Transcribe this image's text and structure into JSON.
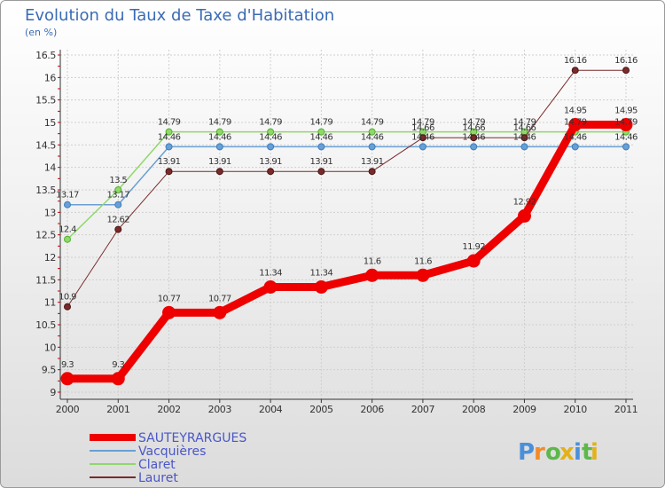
{
  "chart_data": {
    "type": "line",
    "title": "Evolution du Taux de Taxe d'Habitation",
    "ylabel": "(en %)",
    "xlabel": "",
    "x": [
      "2000",
      "2001",
      "2002",
      "2003",
      "2004",
      "2005",
      "2006",
      "2007",
      "2008",
      "2009",
      "2010",
      "2011"
    ],
    "ylim": [
      9,
      16.5
    ],
    "yticks": [
      "9",
      "9.5",
      "10",
      "10.5",
      "11",
      "11.5",
      "12",
      "12.5",
      "13",
      "13.5",
      "14",
      "14.5",
      "15",
      "15.5",
      "16",
      "16.5"
    ],
    "series": [
      {
        "name": "SAUTEYRARGUES",
        "color": "#ee0000",
        "width": 9,
        "values": [
          9.3,
          9.3,
          10.77,
          10.77,
          11.34,
          11.34,
          11.6,
          11.6,
          11.92,
          12.92,
          14.95,
          14.95
        ],
        "labels": [
          "9.3",
          "9.3",
          "10.77",
          "10.77",
          "11.34",
          "11.34",
          "11.6",
          "11.6",
          "11.92",
          "12.92",
          "14.95",
          "14.95"
        ]
      },
      {
        "name": "Vacquières",
        "color": "#6a9fd4",
        "width": 1.5,
        "values": [
          13.17,
          13.17,
          14.46,
          14.46,
          14.46,
          14.46,
          14.46,
          14.46,
          14.46,
          14.46,
          14.46,
          14.46
        ],
        "labels": [
          "13.17",
          "13.17",
          "14.46",
          "14.46",
          "14.46",
          "14.46",
          "14.46",
          "14.46",
          "14.46",
          "14.46",
          "14.46",
          "14.46"
        ]
      },
      {
        "name": "Claret",
        "color": "#8fd86a",
        "width": 1.5,
        "values": [
          12.4,
          13.5,
          14.79,
          14.79,
          14.79,
          14.79,
          14.79,
          14.79,
          14.79,
          14.79,
          14.79,
          14.79
        ],
        "labels": [
          "12.4",
          "13.5",
          "14.79",
          "14.79",
          "14.79",
          "14.79",
          "14.79",
          "14.79",
          "14.79",
          "14.79",
          "14.79",
          "14.79"
        ]
      },
      {
        "name": "Lauret",
        "color": "#7a2a2a",
        "width": 1,
        "values": [
          10.9,
          12.62,
          13.91,
          13.91,
          13.91,
          13.91,
          13.91,
          14.66,
          14.66,
          14.66,
          16.16,
          16.16
        ],
        "labels": [
          "10.9",
          "12.62",
          "13.91",
          "13.91",
          "13.91",
          "13.91",
          "13.91",
          "14.66",
          "14.66",
          "14.66",
          "16.16",
          "16.16"
        ]
      }
    ]
  },
  "brand": {
    "text": "Proxiti",
    "letters": [
      "P",
      "r",
      "o",
      "x",
      "i",
      "t",
      "i"
    ]
  }
}
